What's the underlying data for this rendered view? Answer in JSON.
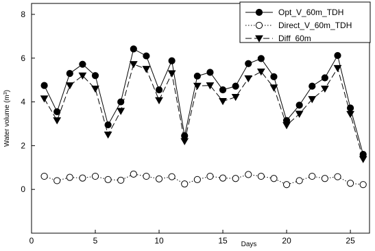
{
  "chart_data": {
    "type": "line",
    "xlabel": "Days",
    "ylabel": "Water volume (m",
    "ylabel_sup": "3",
    "ylabel_close": ")",
    "xlim": [
      0,
      26.5
    ],
    "ylim": [
      -2,
      8.5
    ],
    "x_ticks": [
      0,
      5,
      10,
      15,
      20,
      25
    ],
    "y_ticks": [
      0,
      2,
      4,
      6,
      8
    ],
    "grid": false,
    "legend_position": "top-right",
    "x": [
      1,
      2,
      3,
      4,
      5,
      6,
      7,
      8,
      9,
      10,
      11,
      12,
      13,
      14,
      15,
      16,
      17,
      18,
      19,
      20,
      21,
      22,
      23,
      24,
      25,
      26
    ],
    "series": [
      {
        "name": "Opt_V_60m_TDH",
        "marker": "filled-circle",
        "line": "solid",
        "values": [
          4.75,
          3.55,
          5.3,
          5.72,
          5.2,
          2.95,
          4.0,
          6.42,
          6.1,
          4.55,
          5.88,
          2.45,
          5.18,
          5.35,
          4.55,
          4.72,
          5.75,
          5.98,
          5.15,
          3.15,
          3.85,
          4.72,
          5.1,
          6.12,
          3.72,
          1.6
        ]
      },
      {
        "name": "Direct_V_60m_TDH",
        "marker": "open-circle",
        "line": "dotted",
        "values": [
          0.6,
          0.4,
          0.55,
          0.52,
          0.6,
          0.45,
          0.42,
          0.7,
          0.6,
          0.48,
          0.58,
          0.25,
          0.45,
          0.6,
          0.52,
          0.5,
          0.68,
          0.6,
          0.5,
          0.22,
          0.4,
          0.6,
          0.5,
          0.58,
          0.28,
          0.22
        ]
      },
      {
        "name": "Diff_60m",
        "marker": "filled-triangle-down",
        "line": "dashed",
        "values": [
          4.15,
          3.15,
          4.75,
          5.2,
          4.6,
          2.5,
          3.58,
          5.72,
          5.5,
          4.07,
          5.3,
          2.2,
          4.73,
          4.75,
          4.03,
          4.22,
          5.07,
          5.38,
          4.65,
          2.93,
          3.45,
          4.12,
          4.6,
          5.54,
          3.44,
          1.38
        ]
      }
    ]
  }
}
